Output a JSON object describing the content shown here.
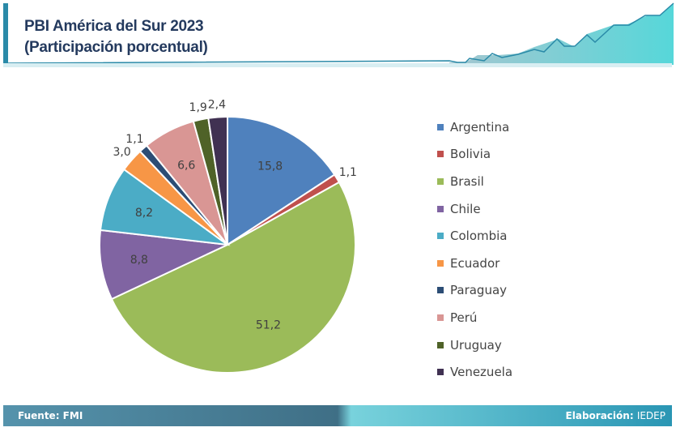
{
  "header": {
    "title_line1": "PBI América del Sur 2023",
    "title_line2": "(Participación porcentual)"
  },
  "footer": {
    "source": "Fuente: FMI",
    "credit_label": "Elaboración:",
    "credit_value": "IEDEP"
  },
  "chart_data": {
    "type": "pie",
    "title": "PBI América del Sur 2023 (Participación porcentual)",
    "categories": [
      "Argentina",
      "Bolivia",
      "Brasil",
      "Chile",
      "Colombia",
      "Ecuador",
      "Paraguay",
      "Perú",
      "Uruguay",
      "Venezuela"
    ],
    "values": [
      15.8,
      1.1,
      51.2,
      8.8,
      8.2,
      3.0,
      1.1,
      6.6,
      1.9,
      2.4
    ],
    "labels": [
      "15,8",
      "1,1",
      "51,2",
      "8,8",
      "8,2",
      "3,0",
      "1,1",
      "6,6",
      "1,9",
      "2,4"
    ],
    "colors": [
      "#4f81bd",
      "#c0504d",
      "#9bbb59",
      "#8064a2",
      "#4bacc6",
      "#f79646",
      "#2c4d75",
      "#d99694",
      "#4f6228",
      "#403152"
    ],
    "legend_position": "right"
  }
}
